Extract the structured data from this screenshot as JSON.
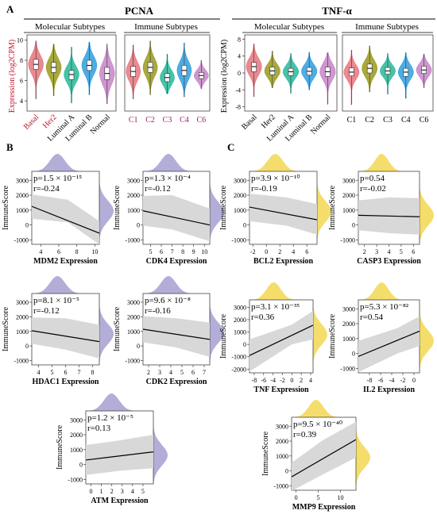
{
  "panel_labels": {
    "a": "A",
    "b": "B",
    "c": "C"
  },
  "panel_a": {
    "pcna": {
      "title": "PCNA",
      "ylabel": "Expression (log2CPM)",
      "molecular": {
        "title": "Molecular Subtypes",
        "yticks": [
          "10",
          "8",
          "6",
          "4"
        ],
        "categories": [
          "Basal",
          "Her2",
          "Luminal A",
          "Luminal B",
          "Normal"
        ]
      },
      "immune": {
        "title": "Immune Subtypes",
        "categories": [
          "C1",
          "C2",
          "C3",
          "C4",
          "C6"
        ]
      }
    },
    "tnf": {
      "title": "TNF-α",
      "ylabel": "Expression (log2CPM)",
      "molecular": {
        "title": "Molecular Subtypes",
        "yticks": [
          "8",
          "4",
          "0",
          "-4",
          "-8"
        ],
        "categories": [
          "Basal",
          "Her2",
          "Luminal A",
          "Luminal B",
          "Normal"
        ]
      },
      "immune": {
        "title": "Immune Subtypes",
        "categories": [
          "C1",
          "C2",
          "C3",
          "C4",
          "C6"
        ]
      }
    }
  },
  "colors": {
    "molecular": [
      "#e8747c",
      "#9a9a1c",
      "#27b99a",
      "#2f9fe0",
      "#c785c8"
    ],
    "immune": [
      "#e8747c",
      "#9a9a1c",
      "#27b99a",
      "#2f9fe0",
      "#c785c8"
    ],
    "purple_density": "#9a93c9",
    "yellow_density": "#f0d23a",
    "ci_band": "#d8d8d8"
  },
  "chart_data": [
    {
      "type": "violin",
      "title": "PCNA",
      "subtitle": "Molecular Subtypes",
      "ylabel": "Expression (log2CPM)",
      "ylim": [
        3,
        10.5
      ],
      "categories": [
        "Basal",
        "Her2",
        "Luminal A",
        "Luminal B",
        "Normal"
      ],
      "medians": [
        7.6,
        7.3,
        6.6,
        7.5,
        6.7
      ],
      "q1": [
        7.1,
        6.8,
        6.1,
        7.0,
        6.1
      ],
      "q3": [
        8.1,
        7.8,
        7.0,
        8.0,
        7.3
      ],
      "mins": [
        4.2,
        4.5,
        3.8,
        4.6,
        3.7
      ],
      "maxs": [
        9.9,
        9.6,
        9.3,
        9.8,
        9.6
      ]
    },
    {
      "type": "violin",
      "title": "PCNA",
      "subtitle": "Immune Subtypes",
      "ylim": [
        3,
        10.5
      ],
      "categories": [
        "C1",
        "C2",
        "C3",
        "C4",
        "C6"
      ],
      "medians": [
        6.9,
        7.3,
        6.3,
        7.0,
        6.5
      ],
      "q1": [
        6.4,
        6.8,
        5.9,
        6.5,
        6.2
      ],
      "q3": [
        7.4,
        7.8,
        6.7,
        7.5,
        6.8
      ],
      "mins": [
        4.2,
        4.6,
        4.7,
        4.4,
        5.2
      ],
      "maxs": [
        9.5,
        9.9,
        8.6,
        9.7,
        8.0
      ]
    },
    {
      "type": "violin",
      "title": "TNF-α",
      "subtitle": "Molecular Subtypes",
      "ylabel": "Expression (log2CPM)",
      "ylim": [
        -9,
        9
      ],
      "categories": [
        "Basal",
        "Her2",
        "Luminal A",
        "Luminal B",
        "Normal"
      ],
      "medians": [
        1.5,
        0.5,
        0.3,
        0.4,
        0.3
      ],
      "q1": [
        0.3,
        -0.4,
        -0.6,
        -0.5,
        -0.8
      ],
      "q3": [
        2.5,
        1.4,
        1.1,
        1.3,
        1.4
      ],
      "mins": [
        -5.6,
        -3.5,
        -4.8,
        -4.0,
        -7.4
      ],
      "maxs": [
        6.9,
        5.2,
        4.6,
        4.9,
        4.8
      ]
    },
    {
      "type": "violin",
      "title": "TNF-α",
      "subtitle": "Immune Subtypes",
      "ylim": [
        -9,
        9
      ],
      "categories": [
        "C1",
        "C2",
        "C3",
        "C4",
        "C6"
      ],
      "medians": [
        0.2,
        1.1,
        0.5,
        0.2,
        0.7
      ],
      "q1": [
        -0.7,
        0.0,
        -0.3,
        -0.8,
        -0.1
      ],
      "q3": [
        1.2,
        2.1,
        1.3,
        1.1,
        1.6
      ],
      "mins": [
        -7.5,
        -4.5,
        -5.0,
        -6.0,
        -3.5
      ],
      "maxs": [
        5.4,
        6.4,
        4.6,
        4.8,
        4.5
      ]
    },
    {
      "type": "scatter",
      "name": "mdm2",
      "xlabel": "MDM2 Expression",
      "ylabel": "ImmuneScore",
      "xlim": [
        3,
        10.5
      ],
      "ylim": [
        -1300,
        3600
      ],
      "xticks": [
        4,
        6,
        8,
        10
      ],
      "yticks": [
        -1000,
        0,
        1000,
        2000,
        3000
      ],
      "line": [
        [
          3,
          1250
        ],
        [
          10.5,
          -550
        ]
      ],
      "ci_lo": [
        [
          3,
          420
        ],
        [
          7,
          180
        ],
        [
          10.5,
          -1300
        ]
      ],
      "ci_hi": [
        [
          3,
          2050
        ],
        [
          7,
          1700
        ],
        [
          10.5,
          250
        ]
      ],
      "stat_p": "p=1.5 × 10⁻¹⁵",
      "stat_r": "r=-0.24",
      "density": "purple"
    },
    {
      "type": "scatter",
      "name": "cdk4",
      "xlabel": "CDK4 Expression",
      "ylabel": "ImmuneScore",
      "xlim": [
        4.3,
        10.5
      ],
      "ylim": [
        -1300,
        3600
      ],
      "xticks": [
        5,
        6,
        7,
        8,
        9,
        10
      ],
      "yticks": [
        -1000,
        0,
        1000,
        2000,
        3000
      ],
      "line": [
        [
          4.3,
          950
        ],
        [
          10.5,
          0
        ]
      ],
      "ci_lo": [
        [
          4.3,
          -50
        ],
        [
          7,
          -300
        ],
        [
          10.5,
          -1100
        ]
      ],
      "ci_hi": [
        [
          4.3,
          1950
        ],
        [
          7,
          2000
        ],
        [
          10.5,
          1100
        ]
      ],
      "stat_p": "p=1.3 × 10⁻⁴",
      "stat_r": "r=-0.12",
      "density": "purple"
    },
    {
      "type": "scatter",
      "name": "bcl2",
      "xlabel": "BCL2 Expression",
      "ylabel": "ImmuneScore",
      "xlim": [
        -2.5,
        7.5
      ],
      "ylim": [
        -1300,
        3600
      ],
      "xticks": [
        -2,
        0,
        2,
        4,
        6
      ],
      "yticks": [
        -1000,
        0,
        1000,
        2000,
        3000
      ],
      "line": [
        [
          -2.5,
          1200
        ],
        [
          7.5,
          350
        ]
      ],
      "ci_lo": [
        [
          -2.5,
          250
        ],
        [
          3,
          -50
        ],
        [
          7.5,
          -650
        ]
      ],
      "ci_hi": [
        [
          -2.5,
          2100
        ],
        [
          3,
          1850
        ],
        [
          7.5,
          1400
        ]
      ],
      "stat_p": "p=3.9 × 10⁻¹⁰",
      "stat_r": "r=-0.19",
      "density": "yellow"
    },
    {
      "type": "scatter",
      "name": "casp3",
      "xlabel": "CASP3 Expression",
      "ylabel": "ImmuneScore",
      "xlim": [
        1.5,
        6.5
      ],
      "ylim": [
        -1300,
        3600
      ],
      "xticks": [
        2,
        3,
        4,
        5,
        6
      ],
      "yticks": [
        -1000,
        0,
        1000,
        2000,
        3000
      ],
      "line": [
        [
          1.5,
          650
        ],
        [
          6.5,
          550
        ]
      ],
      "ci_lo": [
        [
          1.5,
          -350
        ],
        [
          4,
          -550
        ],
        [
          6.5,
          -650
        ]
      ],
      "ci_hi": [
        [
          1.5,
          1650
        ],
        [
          4,
          1850
        ],
        [
          6.5,
          1800
        ]
      ],
      "stat_p": "p=0.54",
      "stat_r": "r=-0.02",
      "density": "yellow"
    },
    {
      "type": "scatter",
      "name": "hdac1",
      "xlabel": "HDAC1 Expression",
      "ylabel": "ImmuneScore",
      "xlim": [
        3.5,
        8.5
      ],
      "ylim": [
        -1300,
        3600
      ],
      "xticks": [
        4,
        5,
        6,
        7,
        8
      ],
      "yticks": [
        -1000,
        0,
        1000,
        2000,
        3000
      ],
      "line": [
        [
          3.5,
          1050
        ],
        [
          8.5,
          300
        ]
      ],
      "ci_lo": [
        [
          3.5,
          150
        ],
        [
          6,
          -250
        ],
        [
          8.5,
          -850
        ]
      ],
      "ci_hi": [
        [
          3.5,
          1950
        ],
        [
          6,
          1900
        ],
        [
          8.5,
          1450
        ]
      ],
      "stat_p": "p=8.1 × 10⁻⁵",
      "stat_r": "r=-0.12",
      "density": "purple"
    },
    {
      "type": "scatter",
      "name": "cdk2",
      "xlabel": "CDK2 Expression",
      "ylabel": "ImmuneScore",
      "xlim": [
        1.5,
        7.5
      ],
      "ylim": [
        -1300,
        3600
      ],
      "xticks": [
        2,
        3,
        4,
        5,
        6,
        7
      ],
      "yticks": [
        -1000,
        0,
        1000,
        2000,
        3000
      ],
      "line": [
        [
          1.5,
          1150
        ],
        [
          7.5,
          450
        ]
      ],
      "ci_lo": [
        [
          1.5,
          250
        ],
        [
          4.5,
          -100
        ],
        [
          7.5,
          -750
        ]
      ],
      "ci_hi": [
        [
          1.5,
          2050
        ],
        [
          4.5,
          1900
        ],
        [
          7.5,
          1600
        ]
      ],
      "stat_p": "p=9.6 × 10⁻⁸",
      "stat_r": "r=-0.16",
      "density": "purple"
    },
    {
      "type": "scatter",
      "name": "tnf",
      "xlabel": "TNF Expression",
      "ylabel": "ImmuneScore",
      "xlim": [
        -9,
        4.5
      ],
      "ylim": [
        -2300,
        3600
      ],
      "xticks": [
        -8,
        -6,
        -4,
        -2,
        0,
        2,
        4
      ],
      "yticks": [
        -2000,
        -1000,
        0,
        1000,
        2000,
        3000
      ],
      "line": [
        [
          -9,
          -900
        ],
        [
          4.5,
          1550
        ]
      ],
      "ci_lo": [
        [
          -9,
          -2200
        ],
        [
          0,
          0
        ],
        [
          4.5,
          400
        ]
      ],
      "ci_hi": [
        [
          -9,
          400
        ],
        [
          0,
          1600
        ],
        [
          4.5,
          2700
        ]
      ],
      "stat_p": "p=3.1 × 10⁻³⁵",
      "stat_r": "r=0.36",
      "density": "yellow"
    },
    {
      "type": "scatter",
      "name": "il2",
      "xlabel": "IL2 Expression",
      "ylabel": "ImmuneScore",
      "xlim": [
        -10,
        1
      ],
      "ylim": [
        -1300,
        3600
      ],
      "xticks": [
        -8,
        -6,
        -4,
        -2,
        0
      ],
      "yticks": [
        -1000,
        0,
        1000,
        2000,
        3000
      ],
      "line": [
        [
          -10,
          -200
        ],
        [
          1,
          1500
        ]
      ],
      "ci_lo": [
        [
          -10,
          -1250
        ],
        [
          -3,
          0
        ],
        [
          1,
          500
        ]
      ],
      "ci_hi": [
        [
          -10,
          850
        ],
        [
          -3,
          1700
        ],
        [
          1,
          2500
        ]
      ],
      "stat_p": "p=5.3 × 10⁻⁸²",
      "stat_r": "r=0.54",
      "density": "yellow"
    },
    {
      "type": "scatter",
      "name": "atm",
      "xlabel": "ATM Expression",
      "ylabel": "ImmuneScore",
      "xlim": [
        -0.5,
        6
      ],
      "ylim": [
        -1300,
        3600
      ],
      "xticks": [
        0,
        1,
        2,
        3,
        4,
        5
      ],
      "yticks": [
        -1000,
        0,
        1000,
        2000,
        3000
      ],
      "line": [
        [
          -0.5,
          300
        ],
        [
          6,
          850
        ]
      ],
      "ci_lo": [
        [
          -0.5,
          -700
        ],
        [
          3,
          -400
        ],
        [
          6,
          -250
        ]
      ],
      "ci_hi": [
        [
          -0.5,
          1300
        ],
        [
          3,
          1650
        ],
        [
          6,
          2000
        ]
      ],
      "stat_p": "p=1.2 × 10⁻⁵",
      "stat_r": "r=0.13",
      "density": "purple"
    },
    {
      "type": "scatter",
      "name": "mmp9",
      "xlabel": "MMP9 Expression",
      "ylabel": "ImmuneScore",
      "xlim": [
        -1,
        13.5
      ],
      "ylim": [
        -1300,
        3600
      ],
      "xticks": [
        0,
        5,
        10
      ],
      "yticks": [
        -1000,
        0,
        1000,
        2000,
        3000
      ],
      "line": [
        [
          -1,
          -400
        ],
        [
          13.5,
          2100
        ]
      ],
      "ci_lo": [
        [
          -1,
          -1350
        ],
        [
          6,
          -250
        ],
        [
          13.5,
          900
        ]
      ],
      "ci_hi": [
        [
          -1,
          550
        ],
        [
          6,
          2050
        ],
        [
          13.5,
          3300
        ]
      ],
      "stat_p": "p=9.5 × 10⁻⁴⁰",
      "stat_r": "r=0.39",
      "density": "yellow"
    }
  ]
}
